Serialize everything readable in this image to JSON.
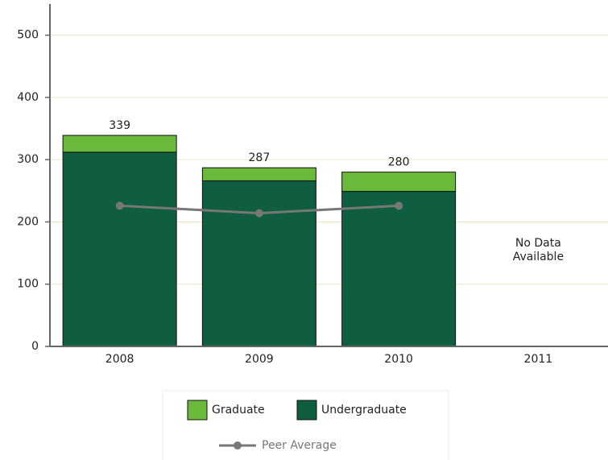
{
  "chart_data": {
    "type": "stacked_bar_line",
    "categories": [
      "2008",
      "2009",
      "2010",
      "2011"
    ],
    "series": [
      {
        "name": "Undergraduate",
        "color": "#0e5e3f",
        "values": [
          312,
          266,
          249,
          null
        ]
      },
      {
        "name": "Graduate",
        "color": "#6ab93a",
        "values": [
          27,
          21,
          31,
          null
        ]
      },
      {
        "name": "Peer Average",
        "color": "#777777",
        "kind": "line",
        "values": [
          226,
          214,
          226,
          null
        ]
      }
    ],
    "totals": [
      339,
      287,
      280,
      null
    ],
    "annotations": [
      {
        "category": "2011",
        "lines": [
          "No Data",
          "Available"
        ]
      }
    ],
    "ylim": [
      0,
      550
    ],
    "yticks": [
      0,
      100,
      200,
      300,
      400,
      500
    ],
    "grid": true,
    "legend": "bottom"
  }
}
